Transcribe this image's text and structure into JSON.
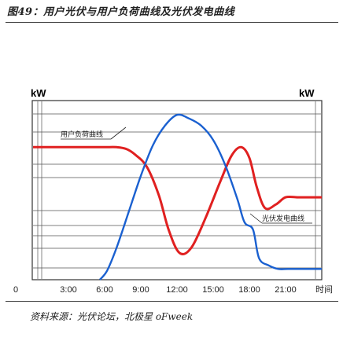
{
  "title": "图49：用户光伏与用户负荷曲线及光伏发电曲线",
  "source": "资料来源：光伏论坛，北极星 oFweek",
  "chart_data": {
    "type": "line",
    "ylabel_left": "kW",
    "ylabel_right": "kW",
    "x_ticks": [
      "0",
      "3:00",
      "6:00",
      "9:00",
      "12:00",
      "15:00",
      "18:00",
      "21:00",
      "时间"
    ],
    "x_tick_hours": [
      0,
      3,
      6,
      9,
      12,
      15,
      18,
      21,
      24
    ],
    "xlim": [
      0,
      24
    ],
    "ylim": [
      0,
      100
    ],
    "grid": true,
    "series": [
      {
        "name": "用户负荷曲线",
        "color": "#e02020",
        "x": [
          4.5,
          6.0,
          7.0,
          7.8,
          8.5,
          9.5,
          10.5,
          11.3,
          12.2,
          13.2,
          14.4,
          15.6,
          16.5,
          17.3,
          18.0,
          18.6,
          19.3,
          20.2,
          21.0,
          22.0,
          23.0,
          24.0
        ],
        "y": [
          74,
          74,
          74,
          73,
          70,
          63,
          47,
          28,
          15,
          18,
          35,
          55,
          69,
          74,
          68,
          52,
          40,
          42,
          46,
          46,
          46,
          46
        ]
      },
      {
        "name": "光伏发电曲线",
        "color": "#1a60d0",
        "x": [
          5.6,
          6.2,
          7.0,
          8.0,
          9.0,
          10.0,
          11.0,
          12.0,
          13.0,
          14.0,
          15.0,
          16.0,
          17.0,
          17.6,
          18.3,
          18.8,
          19.6,
          20.4,
          21.2,
          22.0,
          23.0,
          24.0
        ],
        "y": [
          0,
          5,
          18,
          38,
          58,
          75,
          86,
          92,
          90,
          86,
          78,
          64,
          45,
          32,
          28,
          12,
          8,
          6,
          6,
          6,
          6,
          6
        ]
      }
    ],
    "annotations": [
      {
        "text": "用户负荷曲线",
        "series": "用户负荷曲线"
      },
      {
        "text": "光伏发电曲线",
        "series": "光伏发电曲线"
      }
    ]
  }
}
